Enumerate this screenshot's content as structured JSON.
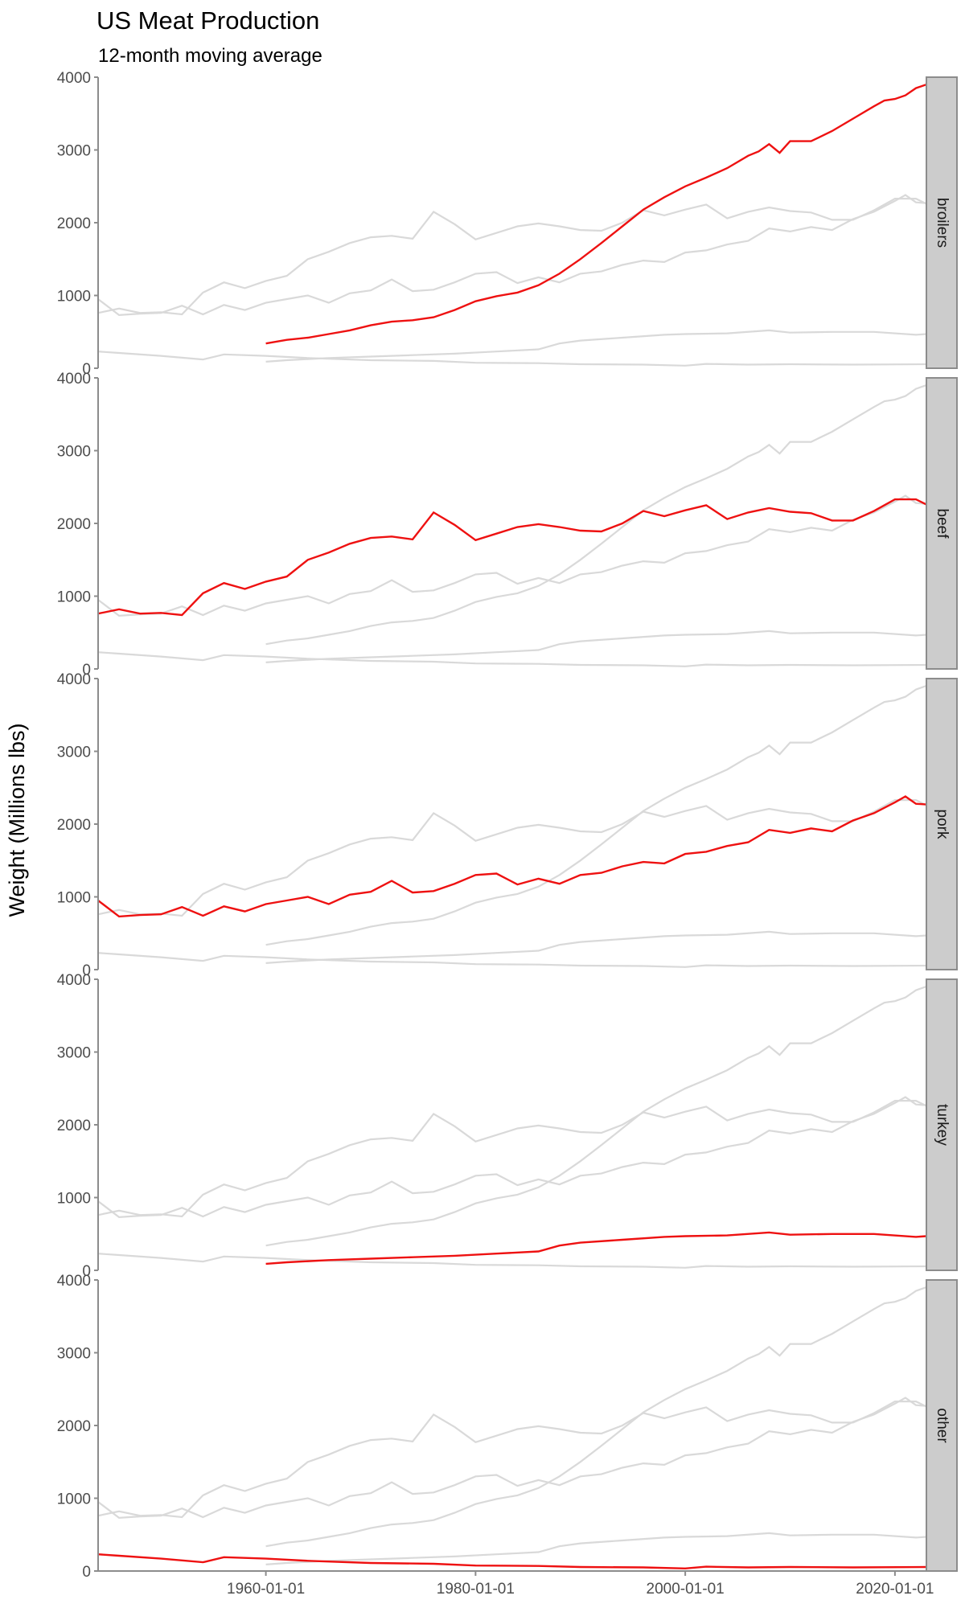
{
  "chart_data": {
    "type": "line",
    "title": "US Meat Production",
    "subtitle": "12-month moving average",
    "xlabel": "",
    "ylabel": "Weight (Millions lbs)",
    "x_ticks": [
      "1960-01-01",
      "1980-01-01",
      "2000-01-01",
      "2020-01-01"
    ],
    "y_ticks": [
      0,
      1000,
      2000,
      3000,
      4000
    ],
    "xlim": [
      1944,
      2023
    ],
    "ylim": [
      0,
      4000
    ],
    "highlight_color": "#ee1111",
    "background_color": "#d9d9d9",
    "facets": [
      "broilers",
      "beef",
      "pork",
      "turkey",
      "other"
    ],
    "series": [
      {
        "name": "broilers",
        "x": [
          1960,
          1962,
          1964,
          1966,
          1968,
          1970,
          1972,
          1974,
          1976,
          1978,
          1980,
          1982,
          1984,
          1986,
          1988,
          1990,
          1992,
          1994,
          1996,
          1998,
          2000,
          2002,
          2004,
          2006,
          2007,
          2008,
          2009,
          2010,
          2012,
          2014,
          2016,
          2018,
          2019,
          2020,
          2021,
          2022,
          2023
        ],
        "values": [
          340,
          390,
          420,
          470,
          520,
          590,
          640,
          660,
          700,
          800,
          920,
          990,
          1040,
          1140,
          1300,
          1500,
          1720,
          1950,
          2180,
          2350,
          2500,
          2620,
          2750,
          2920,
          2980,
          3080,
          2960,
          3120,
          3120,
          3260,
          3430,
          3600,
          3680,
          3700,
          3750,
          3850,
          3900
        ]
      },
      {
        "name": "beef",
        "x": [
          1944,
          1946,
          1948,
          1950,
          1952,
          1954,
          1956,
          1958,
          1960,
          1962,
          1964,
          1966,
          1968,
          1970,
          1972,
          1974,
          1976,
          1978,
          1980,
          1982,
          1984,
          1986,
          1988,
          1990,
          1992,
          1994,
          1996,
          1998,
          2000,
          2002,
          2004,
          2006,
          2008,
          2010,
          2012,
          2014,
          2016,
          2018,
          2020,
          2022,
          2023
        ],
        "values": [
          760,
          820,
          760,
          770,
          740,
          1040,
          1180,
          1100,
          1200,
          1270,
          1500,
          1600,
          1720,
          1800,
          1820,
          1780,
          2150,
          1980,
          1770,
          1860,
          1950,
          1990,
          1950,
          1900,
          1890,
          2000,
          2170,
          2100,
          2180,
          2250,
          2060,
          2150,
          2210,
          2160,
          2140,
          2040,
          2040,
          2170,
          2330,
          2330,
          2260
        ]
      },
      {
        "name": "pork",
        "x": [
          1944,
          1946,
          1948,
          1950,
          1952,
          1954,
          1956,
          1958,
          1960,
          1962,
          1964,
          1966,
          1968,
          1970,
          1972,
          1974,
          1976,
          1978,
          1980,
          1982,
          1984,
          1986,
          1988,
          1990,
          1992,
          1994,
          1996,
          1998,
          2000,
          2002,
          2004,
          2006,
          2008,
          2010,
          2012,
          2014,
          2016,
          2018,
          2020,
          2021,
          2022,
          2023
        ],
        "values": [
          950,
          730,
          750,
          760,
          860,
          740,
          870,
          800,
          900,
          950,
          1000,
          900,
          1030,
          1070,
          1220,
          1060,
          1080,
          1180,
          1300,
          1320,
          1170,
          1250,
          1180,
          1300,
          1330,
          1420,
          1480,
          1460,
          1590,
          1620,
          1700,
          1750,
          1920,
          1880,
          1940,
          1900,
          2050,
          2150,
          2300,
          2380,
          2280,
          2270
        ]
      },
      {
        "name": "turkey",
        "x": [
          1960,
          1962,
          1966,
          1970,
          1974,
          1978,
          1982,
          1986,
          1988,
          1990,
          1994,
          1998,
          2000,
          2004,
          2008,
          2010,
          2014,
          2018,
          2022,
          2023
        ],
        "values": [
          90,
          110,
          140,
          160,
          180,
          200,
          230,
          260,
          340,
          380,
          420,
          460,
          470,
          480,
          520,
          490,
          500,
          500,
          460,
          470
        ]
      },
      {
        "name": "other",
        "x": [
          1944,
          1946,
          1950,
          1954,
          1956,
          1960,
          1964,
          1970,
          1976,
          1980,
          1986,
          1990,
          1996,
          2000,
          2002,
          2006,
          2010,
          2016,
          2023
        ],
        "values": [
          230,
          210,
          170,
          120,
          190,
          170,
          140,
          110,
          100,
          75,
          70,
          55,
          50,
          35,
          60,
          50,
          55,
          50,
          55
        ]
      }
    ]
  }
}
